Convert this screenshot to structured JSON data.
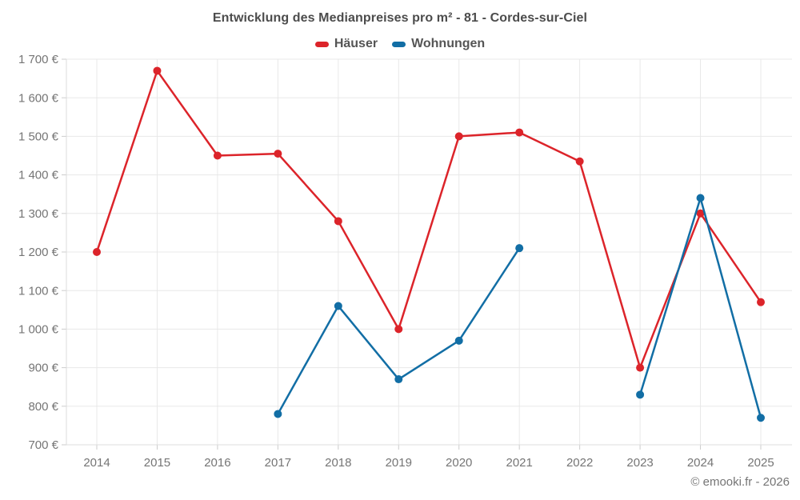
{
  "header": {
    "title": "Entwicklung des Medianpreises pro m² - 81 - Cordes-sur-Ciel"
  },
  "footer": {
    "attribution": "© emooki.fr - 2026"
  },
  "chart_data": {
    "type": "line",
    "title": "Entwicklung des Medianpreises pro m² - 81 - Cordes-sur-Ciel",
    "x": [
      2014,
      2015,
      2016,
      2017,
      2018,
      2019,
      2020,
      2021,
      2022,
      2023,
      2024,
      2025
    ],
    "xtick_labels": [
      "2014",
      "2015",
      "2016",
      "2017",
      "2018",
      "2019",
      "2020",
      "2021",
      "2022",
      "2023",
      "2024",
      "2025"
    ],
    "series": [
      {
        "name": "Häuser",
        "color": "#dc242a",
        "values": [
          1200,
          1670,
          1450,
          1455,
          1280,
          1000,
          1500,
          1510,
          1435,
          900,
          1300,
          1070
        ]
      },
      {
        "name": "Wohnungen",
        "color": "#126ea5",
        "values": [
          null,
          null,
          null,
          780,
          1060,
          870,
          970,
          1210,
          null,
          830,
          1340,
          770
        ]
      }
    ],
    "ylim": [
      700,
      1700
    ],
    "ytick_step": 100,
    "ytick_labels": [
      "700 €",
      "800 €",
      "900 €",
      "1 000 €",
      "1 100 €",
      "1 200 €",
      "1 300 €",
      "1 400 €",
      "1 500 €",
      "1 600 €",
      "1 700 €"
    ],
    "ylabel": "",
    "xlabel": "",
    "grid": true,
    "legend_position": "top",
    "colors": {
      "grid_line": "#e8e8e8",
      "axis_line": "#dcdcdc",
      "tick_mark": "#cccccc",
      "tick_label": "#757575",
      "title_text": "#4c4c4c",
      "legend_text": "#555555",
      "background": "#ffffff"
    }
  }
}
